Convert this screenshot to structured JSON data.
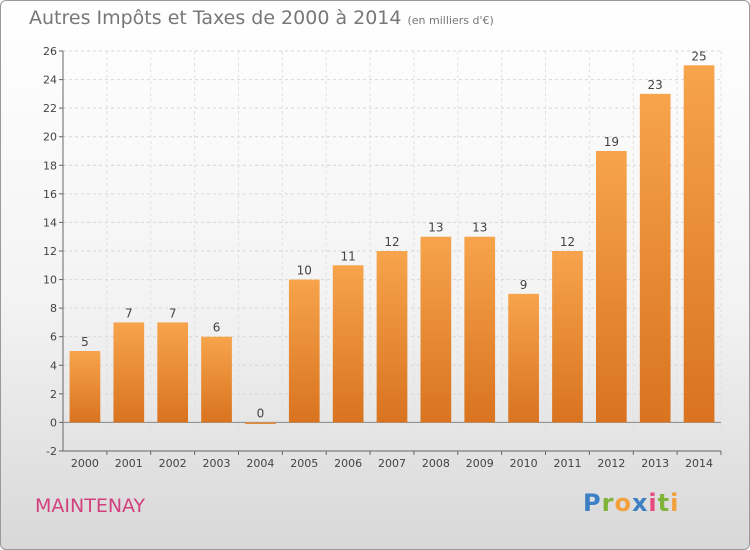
{
  "title": "Autres Impôts et Taxes de 2000 à 2014",
  "subtitle": "(en milliers d'€)",
  "commune": "MAINTENAY",
  "logo": {
    "letters": [
      {
        "ch": "P",
        "color": "#3d7fc4"
      },
      {
        "ch": "r",
        "color": "#7fb339"
      },
      {
        "ch": "o",
        "color": "#f2a03d"
      },
      {
        "ch": "x",
        "color": "#3d7fc4"
      },
      {
        "ch": "i",
        "color": "#e84a7f"
      },
      {
        "ch": "t",
        "color": "#7fb339"
      },
      {
        "ch": "i",
        "color": "#f2a03d"
      }
    ]
  },
  "colors": {
    "bar_top": "#f7a44c",
    "bar_bottom": "#d9731f",
    "title": "#777777",
    "commune": "#d2407e"
  },
  "chart_data": {
    "type": "bar",
    "categories": [
      "2000",
      "2001",
      "2002",
      "2003",
      "2004",
      "2005",
      "2006",
      "2007",
      "2008",
      "2009",
      "2010",
      "2011",
      "2012",
      "2013",
      "2014"
    ],
    "values": [
      5,
      7,
      7,
      6,
      0,
      10,
      11,
      12,
      13,
      13,
      9,
      12,
      19,
      23,
      25
    ],
    "ylim": [
      -2,
      26
    ],
    "yticks": [
      -2,
      0,
      2,
      4,
      6,
      8,
      10,
      12,
      14,
      16,
      18,
      20,
      22,
      24,
      26
    ],
    "grid": true
  }
}
